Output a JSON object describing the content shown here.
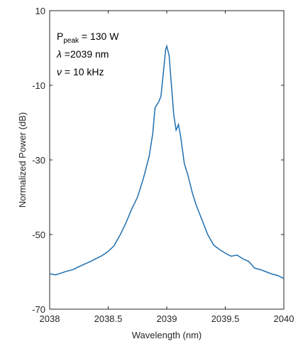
{
  "chart_data": {
    "type": "line",
    "xlabel": "Wavelength (nm)",
    "ylabel": "Normalized Power (dB)",
    "annotations": [
      {
        "main": "P",
        "sub": "peak",
        "rest": " = 130 W"
      },
      {
        "main": "λ",
        "rest": " =2039 nm"
      },
      {
        "main": "ν",
        "rest": " = 10 kHz"
      }
    ],
    "xlim": [
      2038,
      2040
    ],
    "xticks": [
      2038,
      2038.5,
      2039,
      2039.5,
      2040
    ],
    "ylim": [
      -70,
      10
    ],
    "yticks": [
      -70,
      -50,
      -30,
      -10,
      10
    ],
    "grid": false,
    "series": [
      {
        "color": "#1f6fb0",
        "x": [
          2038.0,
          2038.05,
          2038.1,
          2038.15,
          2038.2,
          2038.25,
          2038.3,
          2038.35,
          2038.4,
          2038.45,
          2038.5,
          2038.55,
          2038.6,
          2038.65,
          2038.7,
          2038.75,
          2038.8,
          2038.85,
          2038.88,
          2038.9,
          2038.93,
          2038.95,
          2038.97,
          2038.99,
          2039.0,
          2039.02,
          2039.04,
          2039.06,
          2039.08,
          2039.1,
          2039.12,
          2039.15,
          2039.18,
          2039.22,
          2039.25,
          2039.3,
          2039.35,
          2039.4,
          2039.45,
          2039.5,
          2039.55,
          2039.6,
          2039.65,
          2039.7,
          2039.75,
          2039.8,
          2039.85,
          2039.9,
          2039.95,
          2040.0
        ],
        "values": [
          -60.5,
          -60.8,
          -60.3,
          -59.8,
          -59.4,
          -58.6,
          -57.9,
          -57.2,
          -56.4,
          -55.6,
          -54.5,
          -53,
          -50.2,
          -47,
          -43.2,
          -40,
          -35,
          -29,
          -23,
          -16,
          -14.5,
          -13,
          -7,
          -0.5,
          0.5,
          -2,
          -10,
          -18,
          -22,
          -20.5,
          -24,
          -31,
          -34,
          -39,
          -42,
          -46,
          -50,
          -52.8,
          -54,
          -55,
          -55.8,
          -55.5,
          -56.5,
          -57.2,
          -59,
          -59.4,
          -60,
          -60.6,
          -61,
          -61.8
        ]
      }
    ]
  }
}
